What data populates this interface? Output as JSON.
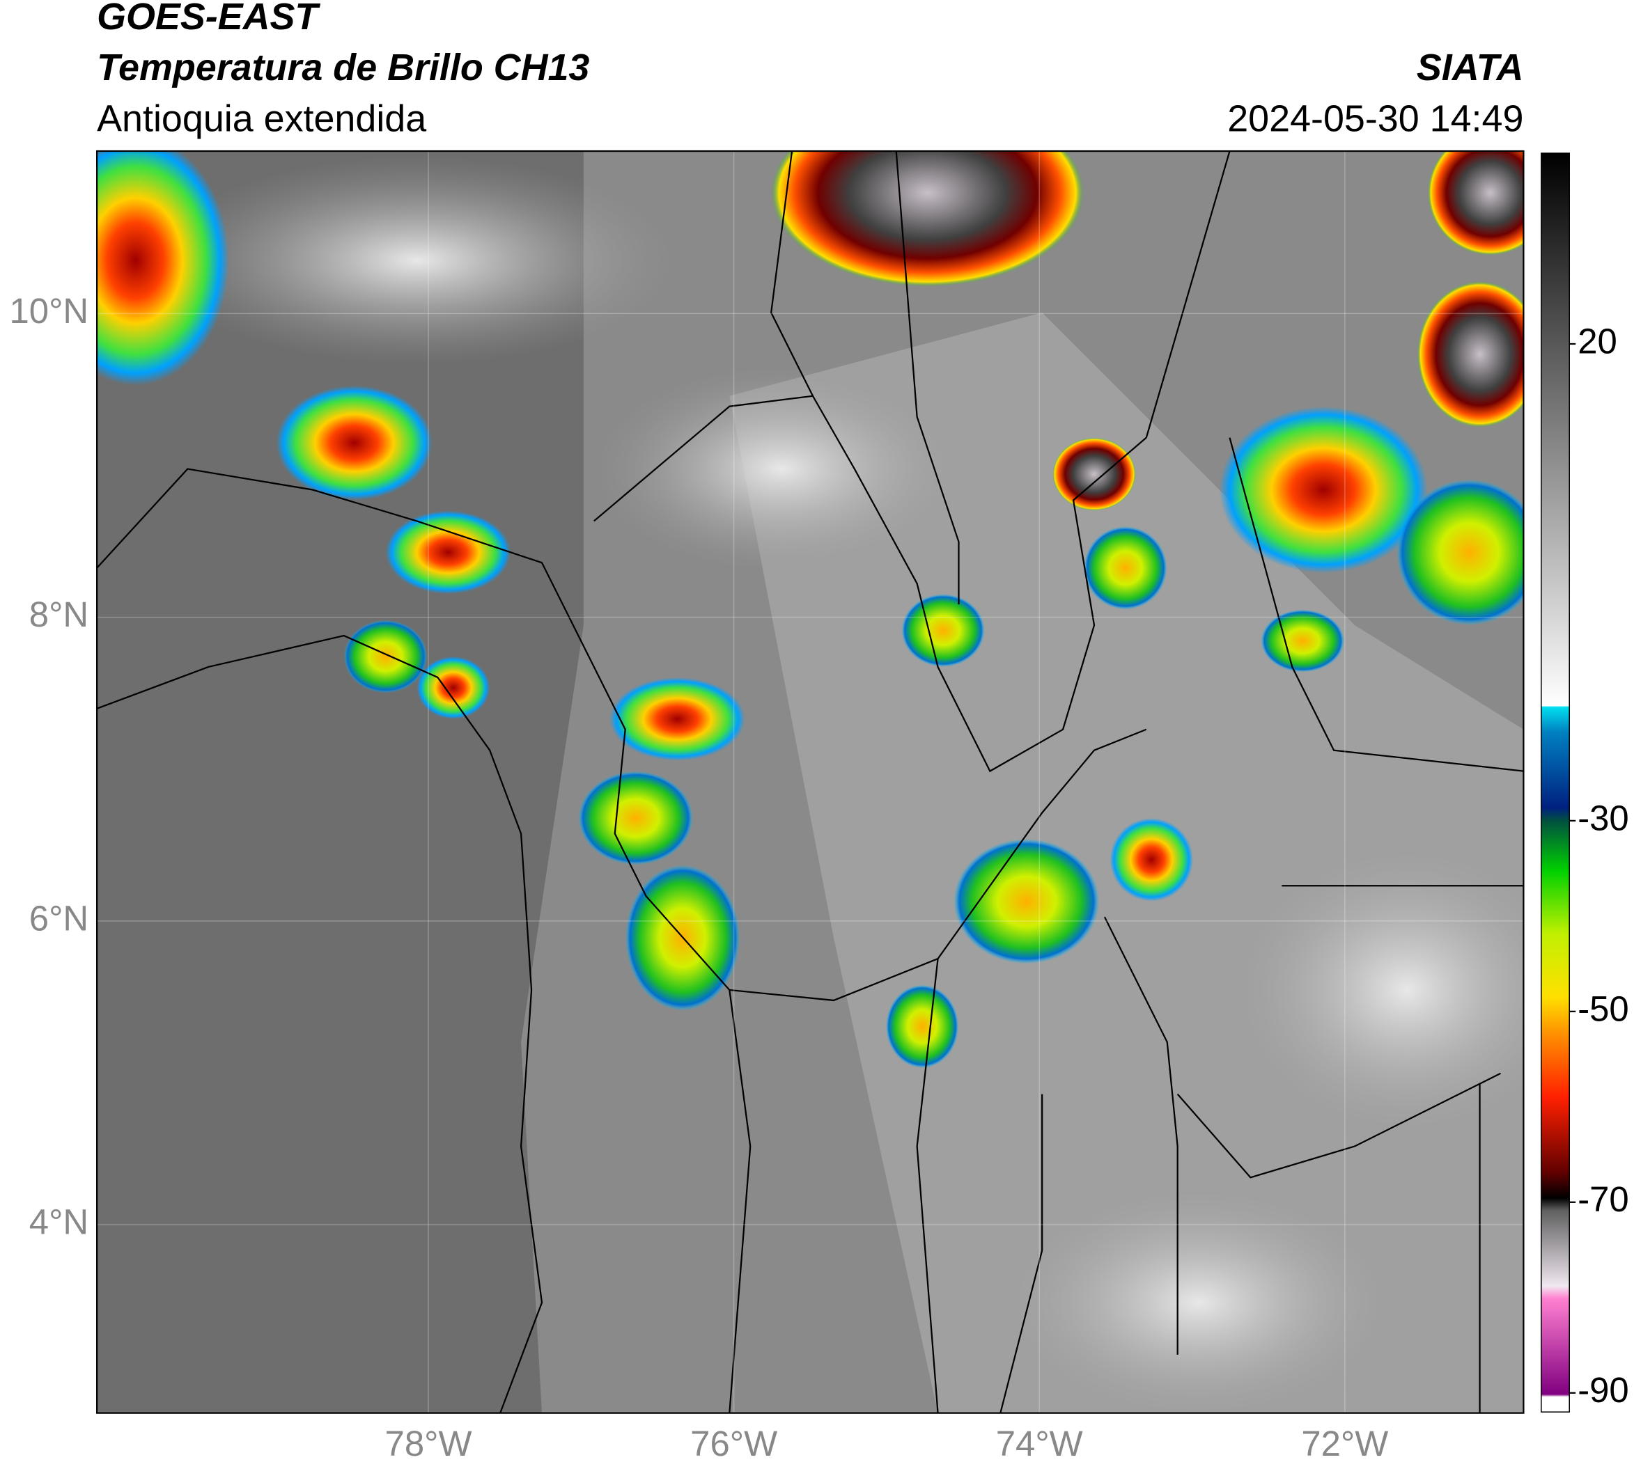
{
  "header": {
    "title": "GOES-EAST",
    "subtitle": "Temperatura de Brillo CH13",
    "region": "Antioquia extendida",
    "source": "SIATA",
    "datetime": "2024-05-30 14:49"
  },
  "map": {
    "xlim": [
      -80.17,
      -70.83
    ],
    "ylim": [
      2.76,
      11.07
    ],
    "xticks": [
      {
        "value": -78,
        "label": "78°W"
      },
      {
        "value": -76,
        "label": "76°W"
      },
      {
        "value": -74,
        "label": "74°W"
      },
      {
        "value": -72,
        "label": "72°W"
      }
    ],
    "yticks": [
      {
        "value": 10,
        "label": "10°N"
      },
      {
        "value": 8,
        "label": "8°N"
      },
      {
        "value": 6,
        "label": "6°N"
      },
      {
        "value": 4,
        "label": "4°N"
      }
    ]
  },
  "colorbar": {
    "lim": [
      -92,
      40
    ],
    "ticks": [
      20,
      -30,
      -50,
      -70,
      -90
    ]
  }
}
